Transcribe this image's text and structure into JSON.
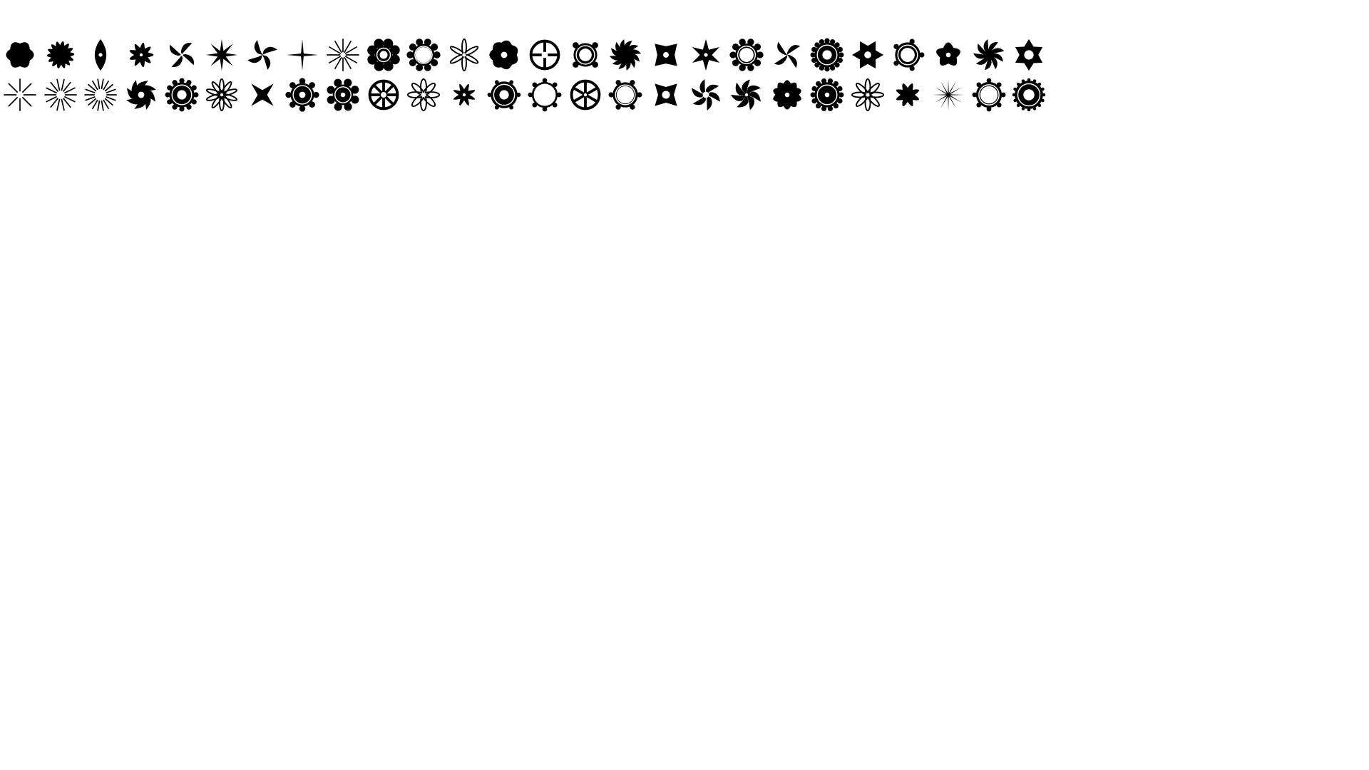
{
  "colors": {
    "background": "#ffffff",
    "ink": "#000000"
  },
  "rows": [
    {
      "glyphs": [
        {
          "icon": "hexagon-bulge-icon",
          "kind": "blob",
          "n": 6,
          "ir": 0.72,
          "rot": 90,
          "hole": 0
        },
        {
          "icon": "spiky-blob-icon",
          "kind": "blob",
          "n": 14,
          "ir": 0.62,
          "rot": 10,
          "hole": 0
        },
        {
          "icon": "leaf-diamond-icon",
          "kind": "lens",
          "n": 1,
          "ir": 0.3,
          "rot": 0,
          "hole": 0.12
        },
        {
          "icon": "dragon-swirl-icon",
          "kind": "blob",
          "n": 9,
          "ir": 0.45,
          "rot": 20,
          "hole": 0.1
        },
        {
          "icon": "shuriken-icon",
          "kind": "pinwheel",
          "n": 4,
          "ir": 0.22,
          "rot": 15,
          "hole": 0.08
        },
        {
          "icon": "eight-point-star-icon",
          "kind": "star",
          "n": 8,
          "ir": 0.28,
          "rot": 0,
          "hole": 0
        },
        {
          "icon": "swastika-hook-icon",
          "kind": "pinwheel",
          "n": 4,
          "ir": 0.3,
          "rot": 45,
          "hole": 0
        },
        {
          "icon": "four-point-star-icon",
          "kind": "star",
          "n": 4,
          "ir": 0.12,
          "rot": 0,
          "hole": 0
        },
        {
          "icon": "flower-burst-icon",
          "kind": "rays",
          "n": 12,
          "ir": 0.2,
          "rot": 0,
          "hole": 0
        },
        {
          "icon": "tribal-knot-icon",
          "kind": "ring-teeth",
          "n": 8,
          "ir": 0.55,
          "rot": 22,
          "hole": 0.25
        },
        {
          "icon": "dotted-ring-icon",
          "kind": "ring-teeth",
          "n": 10,
          "ir": 0.7,
          "rot": 0,
          "hole": 0.5
        },
        {
          "icon": "atom-loops-icon",
          "kind": "petals",
          "n": 6,
          "ir": 0.3,
          "rot": 0,
          "hole": 0.12
        },
        {
          "icon": "bloom-flower-icon",
          "kind": "blob",
          "n": 7,
          "ir": 0.8,
          "rot": 0,
          "hole": 0.2
        },
        {
          "icon": "cross-circle-icon",
          "kind": "cross-ring",
          "n": 4,
          "ir": 0.7,
          "rot": 0,
          "hole": 0.2
        },
        {
          "icon": "celtic-knot-icon",
          "kind": "ring-teeth",
          "n": 4,
          "ir": 0.75,
          "rot": 45,
          "hole": 0.4
        },
        {
          "icon": "spiral-burst-icon",
          "kind": "pinwheel",
          "n": 12,
          "ir": 0.2,
          "rot": 0,
          "hole": 0
        },
        {
          "icon": "diamond-hex-icon",
          "kind": "star",
          "n": 4,
          "ir": 0.55,
          "rot": 45,
          "hole": 0.18
        },
        {
          "icon": "six-point-star-icon",
          "kind": "star",
          "n": 6,
          "ir": 0.38,
          "rot": 0,
          "hole": 0.12
        },
        {
          "icon": "gear-ring-icon",
          "kind": "ring-teeth",
          "n": 10,
          "ir": 0.72,
          "rot": 0,
          "hole": 0.45
        },
        {
          "icon": "hook-cross-icon",
          "kind": "pinwheel",
          "n": 4,
          "ir": 0.15,
          "rot": 30,
          "hole": 0
        },
        {
          "icon": "dotted-medallion-icon",
          "kind": "ring-teeth",
          "n": 16,
          "ir": 0.8,
          "rot": 0,
          "hole": 0.3
        },
        {
          "icon": "star-of-david-icon",
          "kind": "star",
          "n": 6,
          "ir": 0.58,
          "rot": 30,
          "hole": 0.22
        },
        {
          "icon": "knot-circle-icon",
          "kind": "ring-teeth",
          "n": 5,
          "ir": 0.8,
          "rot": 0,
          "hole": 0.45
        },
        {
          "icon": "pentagon-flower-icon",
          "kind": "blob",
          "n": 5,
          "ir": 0.55,
          "rot": 18,
          "hole": 0.15
        },
        {
          "icon": "vortex-icon",
          "kind": "pinwheel",
          "n": 9,
          "ir": 0.18,
          "rot": 0,
          "hole": 0
        },
        {
          "icon": "hex-lattice-icon",
          "kind": "star",
          "n": 6,
          "ir": 0.6,
          "rot": 0,
          "hole": 0.3
        }
      ]
    },
    {
      "glyphs": [
        {
          "icon": "snowflake-sun-icon",
          "kind": "rays",
          "n": 8,
          "ir": 0.25,
          "rot": 0,
          "hole": 0.12
        },
        {
          "icon": "firework-icon",
          "kind": "rays",
          "n": 14,
          "ir": 0.3,
          "rot": 0,
          "hole": 0
        },
        {
          "icon": "sunburst-icon",
          "kind": "rays",
          "n": 18,
          "ir": 0.4,
          "rot": 0,
          "hole": 0.3
        },
        {
          "icon": "saw-gear-icon",
          "kind": "pinwheel",
          "n": 8,
          "ir": 0.6,
          "rot": 0,
          "hole": 0.2
        },
        {
          "icon": "swirl-medallion-icon",
          "kind": "ring-teeth",
          "n": 12,
          "ir": 0.8,
          "rot": 0,
          "hole": 0.3
        },
        {
          "icon": "lace-flower-icon",
          "kind": "petals",
          "n": 10,
          "ir": 0.3,
          "rot": 0,
          "hole": 0.1
        },
        {
          "icon": "lattice-diamond-icon",
          "kind": "star",
          "n": 4,
          "ir": 0.3,
          "rot": 45,
          "hole": 0
        },
        {
          "icon": "ornate-wheel-icon",
          "kind": "ring-teeth",
          "n": 8,
          "ir": 0.75,
          "rot": 0,
          "hole": 0.2
        },
        {
          "icon": "compass-wheel-icon",
          "kind": "ring-teeth",
          "n": 8,
          "ir": 0.65,
          "rot": 22,
          "hole": 0.15
        },
        {
          "icon": "segmented-circle-icon",
          "kind": "cross-ring",
          "n": 8,
          "ir": 0.8,
          "rot": 0,
          "hole": 0.18
        },
        {
          "icon": "lotus-wheel-icon",
          "kind": "petals",
          "n": 8,
          "ir": 0.4,
          "rot": 0,
          "hole": 0.15
        },
        {
          "icon": "club-sun-icon",
          "kind": "blob",
          "n": 8,
          "ir": 0.35,
          "rot": 0,
          "hole": 0.1
        },
        {
          "icon": "rose-circle-icon",
          "kind": "ring-teeth",
          "n": 6,
          "ir": 0.85,
          "rot": 0,
          "hole": 0.3
        },
        {
          "icon": "outline-ring-icon",
          "kind": "ring-teeth",
          "n": 8,
          "ir": 0.82,
          "rot": 0,
          "hole": 0.7
        },
        {
          "icon": "snowflake-block-icon",
          "kind": "cross-ring",
          "n": 6,
          "ir": 0.5,
          "rot": 0,
          "hole": 0.1
        },
        {
          "icon": "hexagon-ring-icon",
          "kind": "ring-teeth",
          "n": 6,
          "ir": 0.8,
          "rot": 0,
          "hole": 0.55
        },
        {
          "icon": "interlace-diamond-icon",
          "kind": "star",
          "n": 4,
          "ir": 0.5,
          "rot": 45,
          "hole": 0.25
        },
        {
          "icon": "triangle-pinwheel-icon",
          "kind": "pinwheel",
          "n": 6,
          "ir": 0.35,
          "rot": 0,
          "hole": 0.2
        },
        {
          "icon": "blade-pinwheel-icon",
          "kind": "pinwheel",
          "n": 7,
          "ir": 0.45,
          "rot": 0,
          "hole": 0.1
        },
        {
          "icon": "cog-flower-icon",
          "kind": "blob",
          "n": 10,
          "ir": 0.75,
          "rot": 0,
          "hole": 0.15
        },
        {
          "icon": "gear-disc-icon",
          "kind": "ring-teeth",
          "n": 14,
          "ir": 0.8,
          "rot": 0,
          "hole": 0.15
        },
        {
          "icon": "net-star-icon",
          "kind": "petals",
          "n": 8,
          "ir": 0.35,
          "rot": 0,
          "hole": 0.12
        },
        {
          "icon": "ornate-cross-icon",
          "kind": "blob",
          "n": 8,
          "ir": 0.45,
          "rot": 0,
          "hole": 0
        },
        {
          "icon": "thin-starburst-icon",
          "kind": "star",
          "n": 12,
          "ir": 0.12,
          "rot": 0,
          "hole": 0
        },
        {
          "icon": "wavy-ring-icon",
          "kind": "ring-teeth",
          "n": 8,
          "ir": 0.82,
          "rot": 0,
          "hole": 0.55
        },
        {
          "icon": "spoke-wheel-icon",
          "kind": "ring-teeth",
          "n": 16,
          "ir": 0.9,
          "rot": 0,
          "hole": 0.35
        }
      ]
    }
  ]
}
